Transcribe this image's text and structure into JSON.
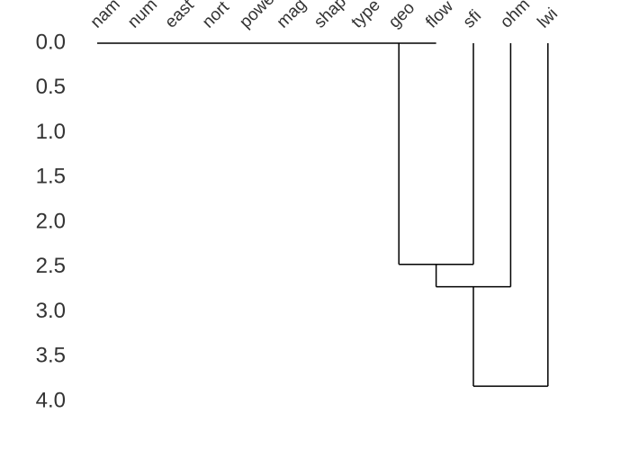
{
  "chart_data": {
    "type": "dendrogram",
    "leaves": [
      "nam",
      "num",
      "east",
      "nort",
      "powe",
      "mag",
      "shap",
      "type",
      "geo",
      "flow",
      "sfi",
      "ohm",
      "lwi"
    ],
    "merge_heights": [
      0,
      2.47,
      2.72,
      3.83
    ],
    "ylim": [
      0,
      4
    ],
    "yticks": [
      {
        "value": 0,
        "label": "0.0"
      },
      0.5,
      {
        "value": 1,
        "label": "1.0"
      },
      1.5,
      {
        "value": 2,
        "label": "2.0"
      },
      2.5,
      {
        "value": 3,
        "label": "3.0"
      },
      3.5,
      {
        "value": 4,
        "label": "4.0"
      }
    ],
    "color": "#000000"
  }
}
